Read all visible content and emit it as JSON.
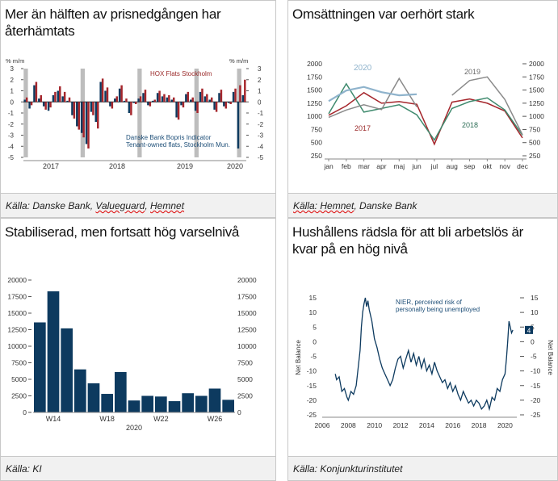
{
  "colors": {
    "navy": "#0d3a5f",
    "red": "#a5262c",
    "grey": "#8a8a8a",
    "lightblue": "#8fb3cc",
    "green": "#3f8a6e",
    "band": "#bdbdbd",
    "darkgrey": "#6a6a6a",
    "greentxt": "#2e6e57",
    "redtxt": "#9b2a2a",
    "bluetxt": "#1e4f78"
  },
  "panels": [
    {
      "title": "Mer än hälften av prisnedgången har återhämtats",
      "source_prefix": "Källa: Danske Bank, ",
      "source_u1": "Valueguard",
      "source_mid": ", ",
      "source_u2": "Hemnet",
      "source_suffix": ""
    },
    {
      "title": "Omsättningen var oerhört stark",
      "source_prefix": "",
      "source_u1": "Källa: Hemnet",
      "source_mid": ", Danske Bank",
      "source_u2": "",
      "source_suffix": ""
    },
    {
      "title": "Stabiliserad, men fortsatt hög varselnivå",
      "source_prefix": "Källa: KI",
      "source_u1": "",
      "source_mid": "",
      "source_u2": "",
      "source_suffix": ""
    },
    {
      "title": "Hushållens rädsla för att bli arbetslös är kvar på en hög nivå",
      "source_prefix": "Källa: Konjunkturinstitutet",
      "source_u1": "",
      "source_mid": "",
      "source_u2": "",
      "source_suffix": ""
    }
  ],
  "chart_data": [
    {
      "type": "bar",
      "ylabel_left": "% m/m",
      "ylabel_right": "% m/m",
      "ylim": [
        -5,
        3
      ],
      "yticks": [
        -5,
        -4,
        -3,
        -2,
        -1,
        0,
        1,
        2,
        3
      ],
      "ytick_labels": [
        "-5",
        "-4",
        "-3",
        "-2",
        "-1",
        "0",
        "1",
        "2",
        "3"
      ],
      "x_labels": [
        "2017",
        "2018",
        "2019",
        "2020"
      ],
      "series": [
        {
          "name": "HOX Flats Stockholm",
          "values": [
            0.4,
            -0.3,
            1.8,
            0.6,
            -0.7,
            -0.5,
            0.9,
            1.4,
            0.9,
            0.4,
            -1.5,
            -2.5,
            -3.2,
            -4.2,
            -1.2,
            -2.4,
            2.1,
            1.3,
            -0.6,
            0.5,
            1.5,
            0.3,
            -1.2,
            -0.2,
            0.5,
            1.1,
            -0.4,
            0.2,
            1.0,
            0.7,
            0.6,
            0.4,
            -1.6,
            -0.5,
            0.9,
            0.4,
            -1.0,
            1.2,
            0.7,
            0.4,
            -0.9,
            1.1,
            -0.6,
            -0.2,
            1.2,
            1.5,
            2.0
          ]
        },
        {
          "name": "Danske Bank Bopris Indicator Tenant-owned flats, Stockholm Mun.",
          "values": [
            0.2,
            -0.6,
            1.5,
            0.3,
            -0.4,
            -0.8,
            0.6,
            1.0,
            0.5,
            0.1,
            -1.2,
            -2.2,
            -2.8,
            -3.8,
            -0.9,
            -1.8,
            1.8,
            1.0,
            -0.4,
            0.3,
            1.2,
            0.1,
            -1.0,
            -0.1,
            0.3,
            0.8,
            -0.3,
            0.1,
            0.8,
            0.5,
            0.4,
            0.2,
            -1.4,
            -0.3,
            0.7,
            0.2,
            -0.8,
            0.9,
            0.5,
            0.2,
            -0.7,
            0.8,
            -0.4,
            -0.1,
            0.9,
            -4.2,
            0.6
          ]
        }
      ],
      "annotations": [
        "HOX Flats Stockholm",
        "Danske Bank Bopris Indicator",
        "Tenant-owned flats, Stockholm Mun."
      ]
    },
    {
      "type": "line",
      "categories": [
        "jan",
        "feb",
        "mar",
        "apr",
        "maj",
        "jun",
        "jul",
        "aug",
        "sep",
        "okt",
        "nov",
        "dec"
      ],
      "ylim": [
        250,
        2000
      ],
      "yticks": [
        250,
        500,
        750,
        1000,
        1250,
        1500,
        1750,
        2000
      ],
      "ytick_labels": [
        "250",
        "500",
        "750",
        "1000",
        "1250",
        "1500",
        "1750",
        "2000"
      ],
      "series": [
        {
          "name": "2017",
          "values": [
            1020,
            1200,
            1450,
            1250,
            1280,
            1230,
            470,
            1270,
            1330,
            1250,
            1100,
            590
          ]
        },
        {
          "name": "2018",
          "values": [
            1050,
            1620,
            1080,
            1150,
            1220,
            1030,
            550,
            1150,
            1280,
            1350,
            1120,
            640
          ]
        },
        {
          "name": "2019",
          "values": [
            980,
            1120,
            1220,
            1130,
            1720,
            1180,
            null,
            1400,
            1680,
            1750,
            1320,
            650
          ]
        },
        {
          "name": "2020",
          "values": [
            1290,
            1490,
            1560,
            1460,
            1400,
            1420,
            null,
            null,
            null,
            null,
            null,
            null
          ]
        }
      ]
    },
    {
      "type": "bar",
      "ylim": [
        0,
        20000
      ],
      "yticks": [
        0,
        2500,
        5000,
        7500,
        10000,
        12500,
        15000,
        17500,
        20000
      ],
      "ytick_labels": [
        "0",
        "2500",
        "5000",
        "7500",
        "10000",
        "12500",
        "15000",
        "17500",
        "20000"
      ],
      "x_labels": [
        "W14",
        "W18",
        "W22",
        "W26"
      ],
      "x_sub": "2020",
      "values": [
        13600,
        18300,
        12700,
        6500,
        4400,
        2800,
        6100,
        1800,
        2500,
        2400,
        1700,
        2900,
        2500,
        3600,
        1900
      ]
    },
    {
      "type": "line",
      "ylabel": "Net Balance",
      "ylim": [
        -25,
        15
      ],
      "yticks": [
        -25,
        -20,
        -15,
        -10,
        -5,
        0,
        5,
        10,
        15
      ],
      "ytick_labels": [
        "-25",
        "-20",
        "-15",
        "-10",
        "-5",
        "0",
        "5",
        "10",
        "15"
      ],
      "x_labels": [
        "2006",
        "2008",
        "2010",
        "2012",
        "2014",
        "2016",
        "2018",
        "2020"
      ],
      "xlim": [
        2006,
        2020.9
      ],
      "series": [
        {
          "name": "NIER, perceived risk of personally being unemployed",
          "points": [
            [
              2007.0,
              -11
            ],
            [
              2007.1,
              -13
            ],
            [
              2007.3,
              -12
            ],
            [
              2007.5,
              -17
            ],
            [
              2007.7,
              -16
            ],
            [
              2007.9,
              -19
            ],
            [
              2008.0,
              -20
            ],
            [
              2008.2,
              -17
            ],
            [
              2008.4,
              -18
            ],
            [
              2008.6,
              -15
            ],
            [
              2008.8,
              -7
            ],
            [
              2008.9,
              -3
            ],
            [
              2009.0,
              5
            ],
            [
              2009.1,
              10
            ],
            [
              2009.2,
              13
            ],
            [
              2009.3,
              15
            ],
            [
              2009.4,
              12
            ],
            [
              2009.5,
              14
            ],
            [
              2009.6,
              11
            ],
            [
              2009.8,
              7
            ],
            [
              2009.9,
              4
            ],
            [
              2010.0,
              1
            ],
            [
              2010.2,
              -2
            ],
            [
              2010.4,
              -6
            ],
            [
              2010.6,
              -9
            ],
            [
              2010.8,
              -11
            ],
            [
              2011.0,
              -13
            ],
            [
              2011.2,
              -15
            ],
            [
              2011.4,
              -13
            ],
            [
              2011.6,
              -9
            ],
            [
              2011.8,
              -6
            ],
            [
              2012.0,
              -5
            ],
            [
              2012.2,
              -9
            ],
            [
              2012.4,
              -6
            ],
            [
              2012.6,
              -3
            ],
            [
              2012.8,
              -7
            ],
            [
              2013.0,
              -4
            ],
            [
              2013.2,
              -8
            ],
            [
              2013.4,
              -5
            ],
            [
              2013.6,
              -9
            ],
            [
              2013.8,
              -6
            ],
            [
              2014.0,
              -10
            ],
            [
              2014.2,
              -8
            ],
            [
              2014.4,
              -11
            ],
            [
              2014.6,
              -7
            ],
            [
              2014.8,
              -10
            ],
            [
              2015.0,
              -12
            ],
            [
              2015.2,
              -14
            ],
            [
              2015.4,
              -13
            ],
            [
              2015.6,
              -16
            ],
            [
              2015.8,
              -14
            ],
            [
              2016.0,
              -17
            ],
            [
              2016.2,
              -15
            ],
            [
              2016.4,
              -18
            ],
            [
              2016.6,
              -20
            ],
            [
              2016.8,
              -17
            ],
            [
              2017.0,
              -19
            ],
            [
              2017.2,
              -21
            ],
            [
              2017.4,
              -20
            ],
            [
              2017.6,
              -22
            ],
            [
              2017.8,
              -20
            ],
            [
              2018.0,
              -21
            ],
            [
              2018.2,
              -23
            ],
            [
              2018.4,
              -22
            ],
            [
              2018.6,
              -20
            ],
            [
              2018.8,
              -23
            ],
            [
              2019.0,
              -19
            ],
            [
              2019.2,
              -20
            ],
            [
              2019.4,
              -16
            ],
            [
              2019.6,
              -17
            ],
            [
              2019.8,
              -13
            ],
            [
              2020.0,
              -11
            ],
            [
              2020.1,
              -6
            ],
            [
              2020.2,
              0
            ],
            [
              2020.3,
              7
            ],
            [
              2020.4,
              5
            ],
            [
              2020.5,
              3
            ],
            [
              2020.6,
              4
            ]
          ]
        }
      ],
      "last_value_label": "4"
    }
  ]
}
